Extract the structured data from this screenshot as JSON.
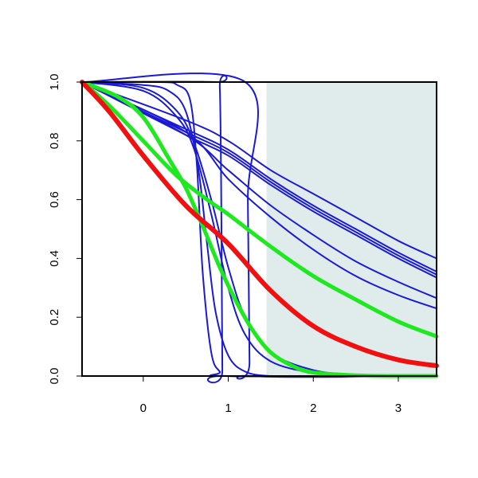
{
  "chart_data": {
    "type": "line",
    "xlim": [
      -0.72,
      3.45
    ],
    "ylim": [
      0,
      1
    ],
    "x_ticks": [
      0,
      1,
      2,
      3
    ],
    "y_ticks": [
      0.0,
      0.2,
      0.4,
      0.6,
      0.8,
      1.0
    ],
    "x_tick_labels": [
      "0",
      "1",
      "2",
      "3"
    ],
    "y_tick_labels": [
      "0.0",
      "0.2",
      "0.4",
      "0.6",
      "0.8",
      "1.0"
    ],
    "title": "",
    "xlabel": "",
    "ylabel": "",
    "grid": false,
    "shaded_region": {
      "x_start": 1.45,
      "x_end": 3.45,
      "color": "#e0ecec"
    },
    "colors": {
      "blue": "#1a1ad6",
      "green": "#1ee81e",
      "red": "#f01010",
      "axis": "#000000"
    },
    "x_start": -0.72,
    "series": [
      {
        "group": "blue",
        "x": [
          -0.72,
          0.5,
          1.0,
          1.5,
          2.0,
          2.5,
          3.0,
          3.45
        ],
        "y": [
          1.0,
          0.87,
          0.8,
          0.7,
          0.62,
          0.54,
          0.46,
          0.4
        ]
      },
      {
        "group": "blue",
        "x": [
          -0.72,
          0.5,
          1.0,
          1.5,
          2.0,
          2.5,
          3.0,
          3.45
        ],
        "y": [
          1.0,
          0.84,
          0.77,
          0.67,
          0.58,
          0.5,
          0.42,
          0.355
        ]
      },
      {
        "group": "blue",
        "x": [
          -0.72,
          0.5,
          1.0,
          1.5,
          2.0,
          2.5,
          3.0,
          3.45
        ],
        "y": [
          1.0,
          0.83,
          0.76,
          0.66,
          0.57,
          0.49,
          0.41,
          0.345
        ]
      },
      {
        "group": "blue",
        "x": [
          -0.72,
          0.5,
          1.0,
          1.5,
          2.0,
          2.5,
          3.0,
          3.45
        ],
        "y": [
          1.0,
          0.82,
          0.75,
          0.65,
          0.56,
          0.48,
          0.4,
          0.335
        ]
      },
      {
        "group": "blue",
        "x": [
          -0.72,
          0.5,
          1.0,
          1.5,
          2.0,
          2.5,
          3.0,
          3.45
        ],
        "y": [
          1.0,
          0.82,
          0.7,
          0.58,
          0.48,
          0.39,
          0.32,
          0.265
        ]
      },
      {
        "group": "blue",
        "x": [
          -0.72,
          0.5,
          1.0,
          1.5,
          2.0,
          2.5,
          3.0,
          3.45
        ],
        "y": [
          1.0,
          0.83,
          0.67,
          0.54,
          0.43,
          0.34,
          0.275,
          0.23
        ]
      },
      {
        "group": "blue",
        "x": [
          -0.72,
          0.0,
          0.4,
          0.6,
          0.8,
          1.0,
          1.2,
          1.5,
          2.0,
          2.5,
          3.0,
          3.45
        ],
        "y": [
          1.0,
          0.98,
          0.9,
          0.79,
          0.6,
          0.37,
          0.2,
          0.08,
          0.02,
          0.005,
          0.0,
          0.0
        ]
      },
      {
        "group": "blue",
        "x": [
          -0.72,
          0.0,
          0.4,
          0.6,
          0.8,
          1.0,
          1.2,
          1.5,
          2.0,
          2.5,
          3.0,
          3.45
        ],
        "y": [
          1.0,
          0.97,
          0.88,
          0.77,
          0.55,
          0.3,
          0.14,
          0.05,
          0.01,
          0.0,
          0.0,
          0.0
        ]
      },
      {
        "group": "blue",
        "x": [
          -0.72,
          0.0,
          0.3,
          0.5,
          0.65,
          0.75,
          0.85,
          1.0,
          1.2,
          1.5,
          2.0,
          3.45
        ],
        "y": [
          1.0,
          0.99,
          0.97,
          0.9,
          0.7,
          0.45,
          0.22,
          0.07,
          0.015,
          0.0,
          0.0,
          0.0
        ]
      },
      {
        "group": "blue",
        "x": [
          -0.72,
          0.2,
          0.4,
          0.55,
          0.63,
          0.7,
          0.8,
          0.9,
          1.0,
          3.45
        ],
        "y": [
          1.0,
          1.0,
          0.99,
          0.94,
          0.72,
          0.35,
          0.08,
          0.015,
          0.0,
          0.0
        ]
      },
      {
        "group": "blue",
        "x": [
          -0.72,
          0.85,
          0.9,
          0.92,
          0.93,
          0.95,
          3.45
        ],
        "y": [
          1.0,
          1.0,
          0.98,
          0.5,
          0.02,
          0.0,
          0.0
        ]
      },
      {
        "group": "blue",
        "x": [
          -0.72,
          1.2,
          1.23,
          1.25,
          1.27,
          3.45
        ],
        "y": [
          1.0,
          1.0,
          0.6,
          0.05,
          0.0,
          0.0
        ]
      },
      {
        "group": "green",
        "x": [
          -0.72,
          -0.4,
          0.0,
          0.4,
          0.8,
          1.0,
          1.5,
          2.0,
          2.5,
          3.0,
          3.45
        ],
        "y": [
          1.0,
          0.92,
          0.8,
          0.68,
          0.59,
          0.55,
          0.44,
          0.34,
          0.26,
          0.185,
          0.135
        ]
      },
      {
        "group": "green",
        "x": [
          -0.72,
          -0.3,
          0.0,
          0.3,
          0.5,
          0.7,
          0.9,
          1.1,
          1.3,
          1.5,
          1.75,
          2.0,
          2.5,
          3.0,
          3.45
        ],
        "y": [
          1.0,
          0.95,
          0.88,
          0.74,
          0.64,
          0.51,
          0.37,
          0.25,
          0.15,
          0.08,
          0.035,
          0.012,
          0.002,
          0.0,
          0.0
        ]
      },
      {
        "group": "red",
        "x": [
          -0.72,
          -0.4,
          0.0,
          0.5,
          1.0,
          1.5,
          2.0,
          2.5,
          3.0,
          3.45
        ],
        "y": [
          1.0,
          0.9,
          0.75,
          0.58,
          0.45,
          0.29,
          0.17,
          0.1,
          0.055,
          0.035
        ]
      }
    ]
  }
}
